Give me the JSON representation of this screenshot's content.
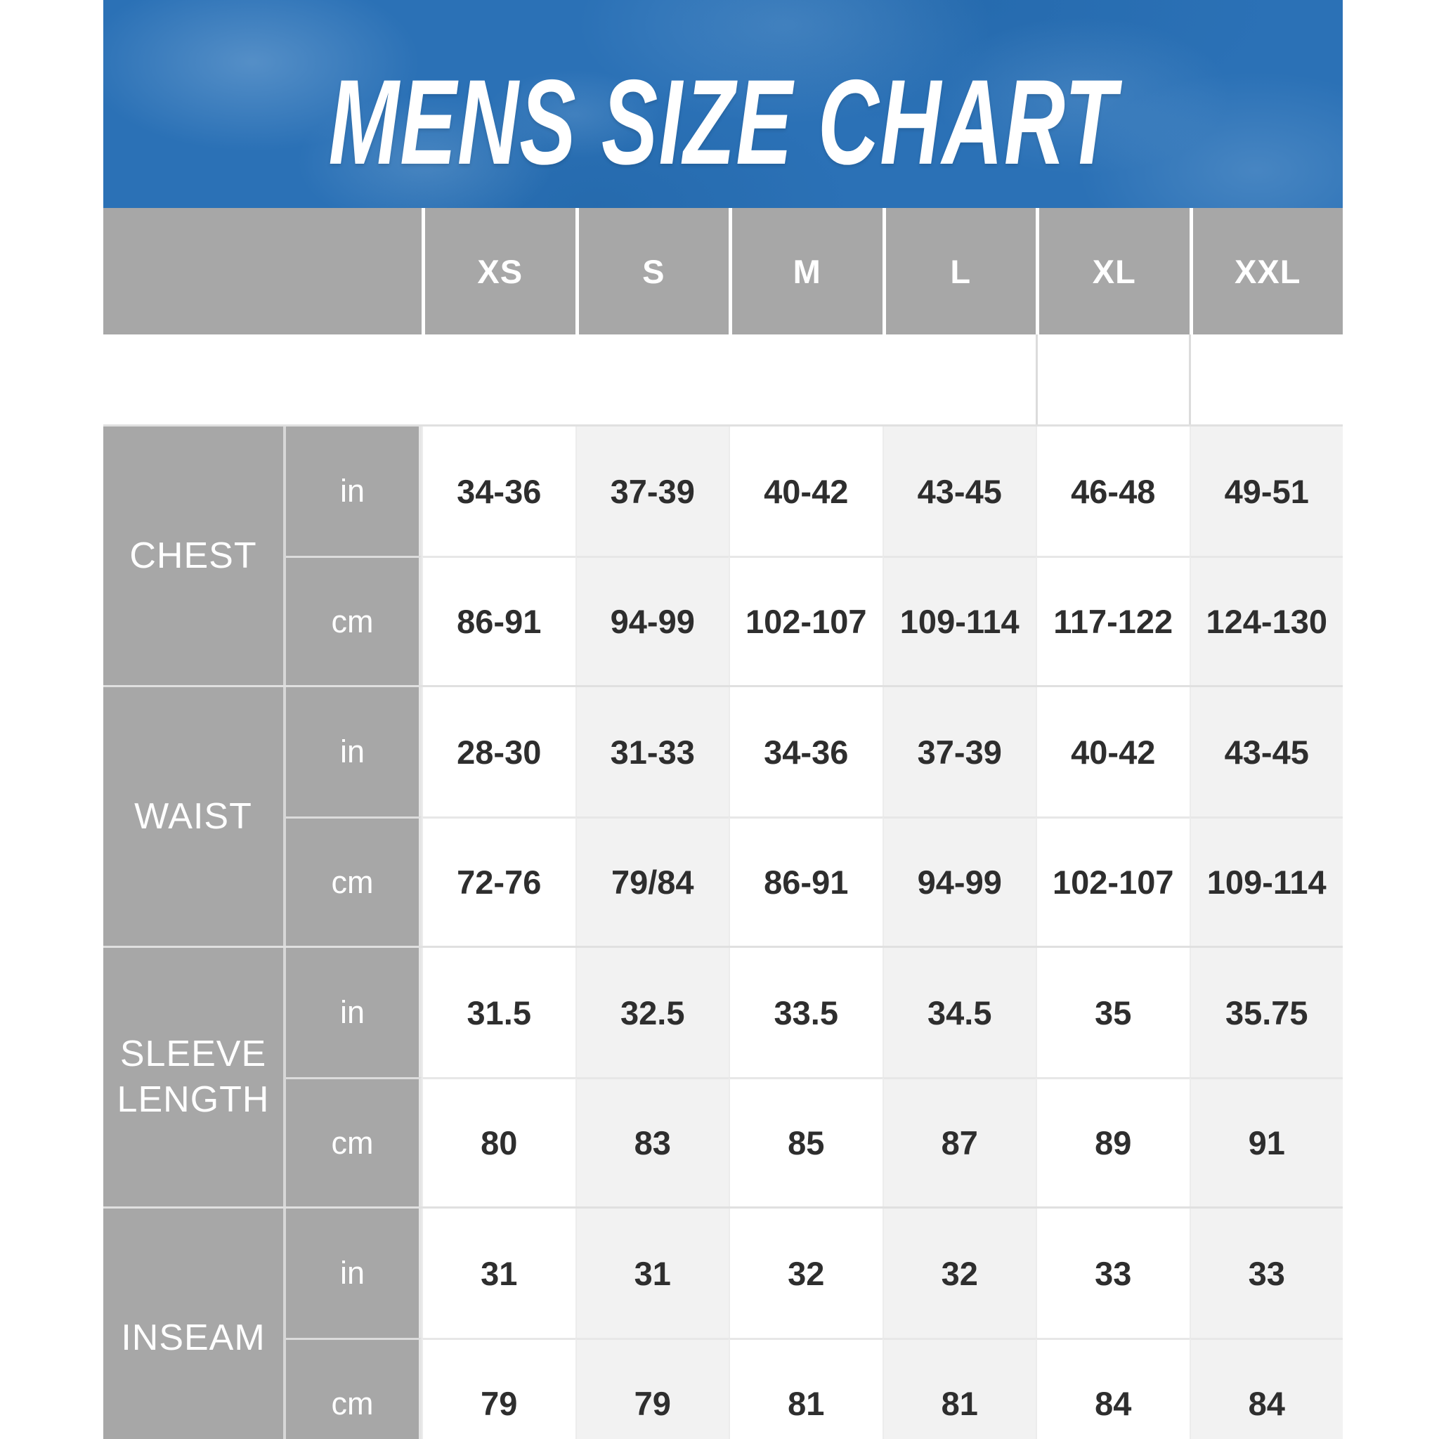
{
  "chart_data": {
    "type": "table",
    "title": "MENS SIZE CHART",
    "column_headers": [
      "XS",
      "S",
      "M",
      "L",
      "XL",
      "XXL"
    ],
    "row_groups": [
      {
        "label": "CHEST",
        "rows": [
          {
            "unit": "in",
            "values": [
              "34-36",
              "37-39",
              "40-42",
              "43-45",
              "46-48",
              "49-51"
            ]
          },
          {
            "unit": "cm",
            "values": [
              "86-91",
              "94-99",
              "102-107",
              "109-114",
              "117-122",
              "124-130"
            ]
          }
        ]
      },
      {
        "label": "WAIST",
        "rows": [
          {
            "unit": "in",
            "values": [
              "28-30",
              "31-33",
              "34-36",
              "37-39",
              "40-42",
              "43-45"
            ]
          },
          {
            "unit": "cm",
            "values": [
              "72-76",
              "79/84",
              "86-91",
              "94-99",
              "102-107",
              "109-114"
            ]
          }
        ]
      },
      {
        "label": "SLEEVE LENGTH",
        "rows": [
          {
            "unit": "in",
            "values": [
              "31.5",
              "32.5",
              "33.5",
              "34.5",
              "35",
              "35.75"
            ]
          },
          {
            "unit": "cm",
            "values": [
              "80",
              "83",
              "85",
              "87",
              "89",
              "91"
            ]
          }
        ]
      },
      {
        "label": "INSEAM",
        "rows": [
          {
            "unit": "in",
            "values": [
              "31",
              "31",
              "32",
              "32",
              "33",
              "33"
            ]
          },
          {
            "unit": "cm",
            "values": [
              "79",
              "79",
              "81",
              "81",
              "84",
              "84"
            ]
          }
        ]
      }
    ],
    "layout": {
      "banner_color": "#2b71b6",
      "header_gray": "#a7a7a7",
      "shaded_column_color": "#f2f2f2",
      "value_text_color": "#2e2e2e",
      "shaded_columns": [
        "S",
        "L",
        "XXL"
      ]
    }
  }
}
